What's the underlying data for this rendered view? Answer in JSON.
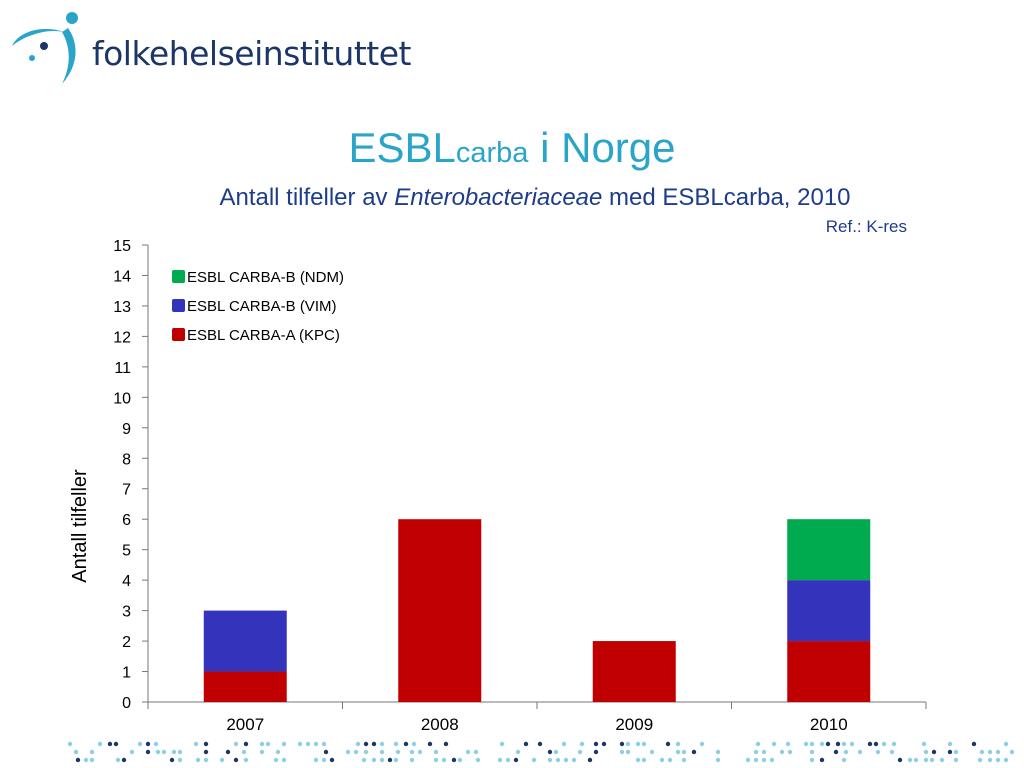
{
  "logo": {
    "text": "folkehelseinstituttet"
  },
  "header": {
    "title_main": "ESBL",
    "title_sub": "carba",
    "title_rest": " i Norge",
    "subtitle_pre": "Antall tilfeller av ",
    "subtitle_italic": "Enterobacteriaceae",
    "subtitle_post": " med ESBLcarba, 2010",
    "ref": "Ref.: K-res"
  },
  "colors": {
    "accent": "#2aa5c8",
    "navy": "#1e3c8c",
    "kpc": "#c00000",
    "vim": "#3333bb",
    "ndm": "#00aa4f",
    "dot_light": "#8dd0e2",
    "dot_dark": "#1a3566"
  },
  "chart_data": {
    "type": "bar",
    "stacked": true,
    "categories": [
      "2007",
      "2008",
      "2009",
      "2010"
    ],
    "series": [
      {
        "name": "ESBL CARBA-A (KPC)",
        "values": [
          1,
          6,
          2,
          2
        ],
        "color": "#c00000"
      },
      {
        "name": "ESBL CARBA-B (VIM)",
        "values": [
          2,
          0,
          0,
          2
        ],
        "color": "#3333bb"
      },
      {
        "name": "ESBL CARBA-B (NDM)",
        "values": [
          0,
          0,
          0,
          2
        ],
        "color": "#00aa4f"
      }
    ],
    "legend_order": [
      "ESBL CARBA-B (NDM)",
      "ESBL CARBA-B (VIM)",
      "ESBL CARBA-A (KPC)"
    ],
    "legend_position": "top-left",
    "ylabel": "Antall tilfeller",
    "xlabel": "",
    "ylim": [
      0,
      15
    ],
    "yticks": [
      "0",
      "1",
      "2",
      "3",
      "4",
      "5",
      "6",
      "7",
      "8",
      "9",
      "10",
      "11",
      "12",
      "13",
      "14",
      "15"
    ],
    "grid": false
  }
}
